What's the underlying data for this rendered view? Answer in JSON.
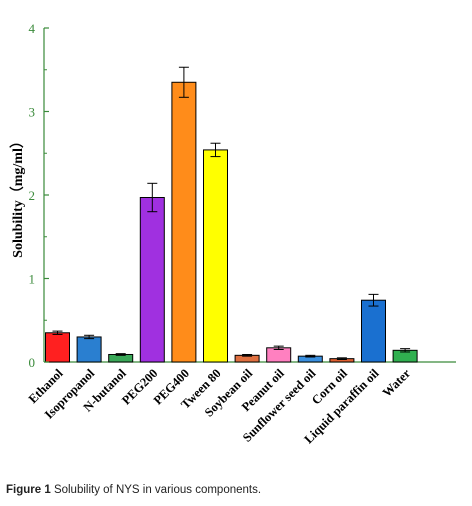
{
  "caption": {
    "label": "Figure 1",
    "text": "Solubility of NYS in various components."
  },
  "chart_data": {
    "type": "bar",
    "title": "",
    "xlabel": "",
    "ylabel": "Solubility（mg/ml）",
    "ylim": [
      0,
      4
    ],
    "yticks": [
      0,
      1,
      2,
      3,
      4
    ],
    "grid": false,
    "categories": [
      "Ethanol",
      "Isopropanol",
      "N-butanol",
      "PEG200",
      "PEG400",
      "Tween 80",
      "Soybean oil",
      "Peanut oil",
      "Sunflower seed oil",
      "Corn oil",
      "Liquid paraffin oil",
      "Water"
    ],
    "values": [
      0.35,
      0.3,
      0.09,
      1.97,
      3.35,
      2.54,
      0.08,
      0.17,
      0.07,
      0.04,
      0.74,
      0.14
    ],
    "errors": [
      0.02,
      0.02,
      0.01,
      0.17,
      0.18,
      0.08,
      0.01,
      0.02,
      0.01,
      0.01,
      0.07,
      0.02
    ],
    "colors": [
      "#ff2020",
      "#2a7fd0",
      "#3aa858",
      "#a030e0",
      "#ff8c1a",
      "#ffff00",
      "#e07040",
      "#ff80c0",
      "#3a90e0",
      "#e06030",
      "#1a70d0",
      "#30b050"
    ],
    "axis_color": "#3a8a3a"
  }
}
